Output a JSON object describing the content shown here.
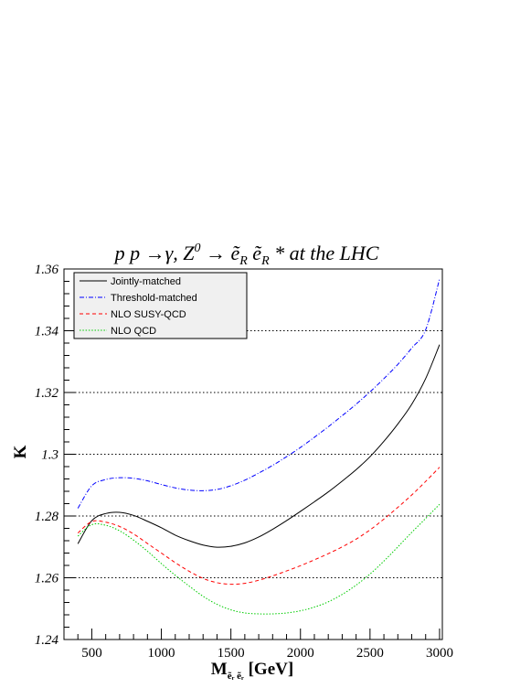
{
  "chart_data": {
    "type": "line",
    "title": "p p →γ, Z⁰ → ẽ_R ẽ_R * at the LHC",
    "title_parts": {
      "prefix": "p p  →",
      "gamma": "γ, Z",
      "zsup": "0",
      "arrow": " → ",
      "e1": "ẽ",
      "sub1": "R",
      "e2": " ẽ",
      "sub2": "R",
      "suffix": " * at the LHC"
    },
    "xlabel": "M",
    "xlabel_sub": "ẽᵣ ẽᵣ",
    "xlabel_unit": " [GeV]",
    "ylabel": "K",
    "xlim": [
      300,
      3020
    ],
    "ylim": [
      1.24,
      1.36
    ],
    "x_ticks": [
      500,
      1000,
      1500,
      2000,
      2500,
      3000
    ],
    "x_tick_labels": [
      "500",
      "1000",
      "1500",
      "2000",
      "2500",
      "3000"
    ],
    "y_ticks": [
      1.24,
      1.26,
      1.28,
      1.3,
      1.32,
      1.34,
      1.36
    ],
    "y_tick_labels": [
      "1.24",
      "1.26",
      "1.28",
      "1.3",
      "1.32",
      "1.34",
      "1.36"
    ],
    "grid": "horizontal-dotted",
    "legend_position": "top-left",
    "series": [
      {
        "name": "Jointly-matched",
        "color": "#000000",
        "dash": "solid",
        "x": [
          400,
          500,
          600,
          700,
          800,
          900,
          1000,
          1100,
          1200,
          1300,
          1400,
          1500,
          1600,
          1700,
          1800,
          1900,
          2000,
          2100,
          2200,
          2300,
          2400,
          2500,
          2600,
          2700,
          2800,
          2900,
          3000
        ],
        "y": [
          1.271,
          1.2785,
          1.2808,
          1.2812,
          1.2802,
          1.2783,
          1.2762,
          1.2738,
          1.272,
          1.2706,
          1.2699,
          1.2702,
          1.2713,
          1.2732,
          1.2757,
          1.2785,
          1.2815,
          1.2846,
          1.2878,
          1.2913,
          1.295,
          1.2992,
          1.3042,
          1.3098,
          1.3162,
          1.3245,
          1.3355
        ]
      },
      {
        "name": "Threshold-matched",
        "color": "#0000ff",
        "dash": "dashdot",
        "x": [
          400,
          500,
          600,
          700,
          800,
          900,
          1000,
          1100,
          1200,
          1300,
          1400,
          1500,
          1600,
          1700,
          1800,
          1900,
          2000,
          2100,
          2200,
          2300,
          2400,
          2500,
          2600,
          2700,
          2800,
          2900,
          3000
        ],
        "y": [
          1.2825,
          1.2898,
          1.2918,
          1.2924,
          1.2922,
          1.2914,
          1.2902,
          1.2891,
          1.2884,
          1.2882,
          1.2886,
          1.2898,
          1.2916,
          1.2939,
          1.2964,
          1.2992,
          1.3022,
          1.3055,
          1.3089,
          1.3125,
          1.3162,
          1.3202,
          1.3245,
          1.3291,
          1.3344,
          1.3403,
          1.3568
        ]
      },
      {
        "name": "NLO SUSY-QCD",
        "color": "#ff0000",
        "dash": "dashed",
        "x": [
          400,
          500,
          600,
          700,
          800,
          900,
          1000,
          1100,
          1200,
          1300,
          1400,
          1500,
          1600,
          1700,
          1800,
          1900,
          2000,
          2100,
          2200,
          2300,
          2400,
          2500,
          2600,
          2700,
          2800,
          2900,
          3000
        ],
        "y": [
          1.2745,
          1.2782,
          1.278,
          1.2766,
          1.2742,
          1.2711,
          1.268,
          1.2649,
          1.2621,
          1.2598,
          1.2584,
          1.2579,
          1.2582,
          1.2592,
          1.2606,
          1.2622,
          1.2639,
          1.2658,
          1.2678,
          1.27,
          1.2725,
          1.2755,
          1.279,
          1.2828,
          1.2868,
          1.2912,
          1.2958
        ]
      },
      {
        "name": "NLO QCD",
        "color": "#00cc00",
        "dash": "dotted",
        "x": [
          400,
          500,
          600,
          700,
          800,
          900,
          1000,
          1100,
          1200,
          1300,
          1400,
          1500,
          1600,
          1700,
          1800,
          1900,
          2000,
          2100,
          2200,
          2300,
          2400,
          2500,
          2600,
          2700,
          2800,
          2900,
          3000
        ],
        "y": [
          1.2735,
          1.2772,
          1.277,
          1.2752,
          1.2722,
          1.2686,
          1.2646,
          1.2608,
          1.2573,
          1.254,
          1.2514,
          1.2496,
          1.2486,
          1.2483,
          1.2483,
          1.2486,
          1.2493,
          1.2505,
          1.2522,
          1.2546,
          1.2576,
          1.2612,
          1.2654,
          1.27,
          1.2747,
          1.2792,
          1.2838
        ]
      }
    ]
  }
}
